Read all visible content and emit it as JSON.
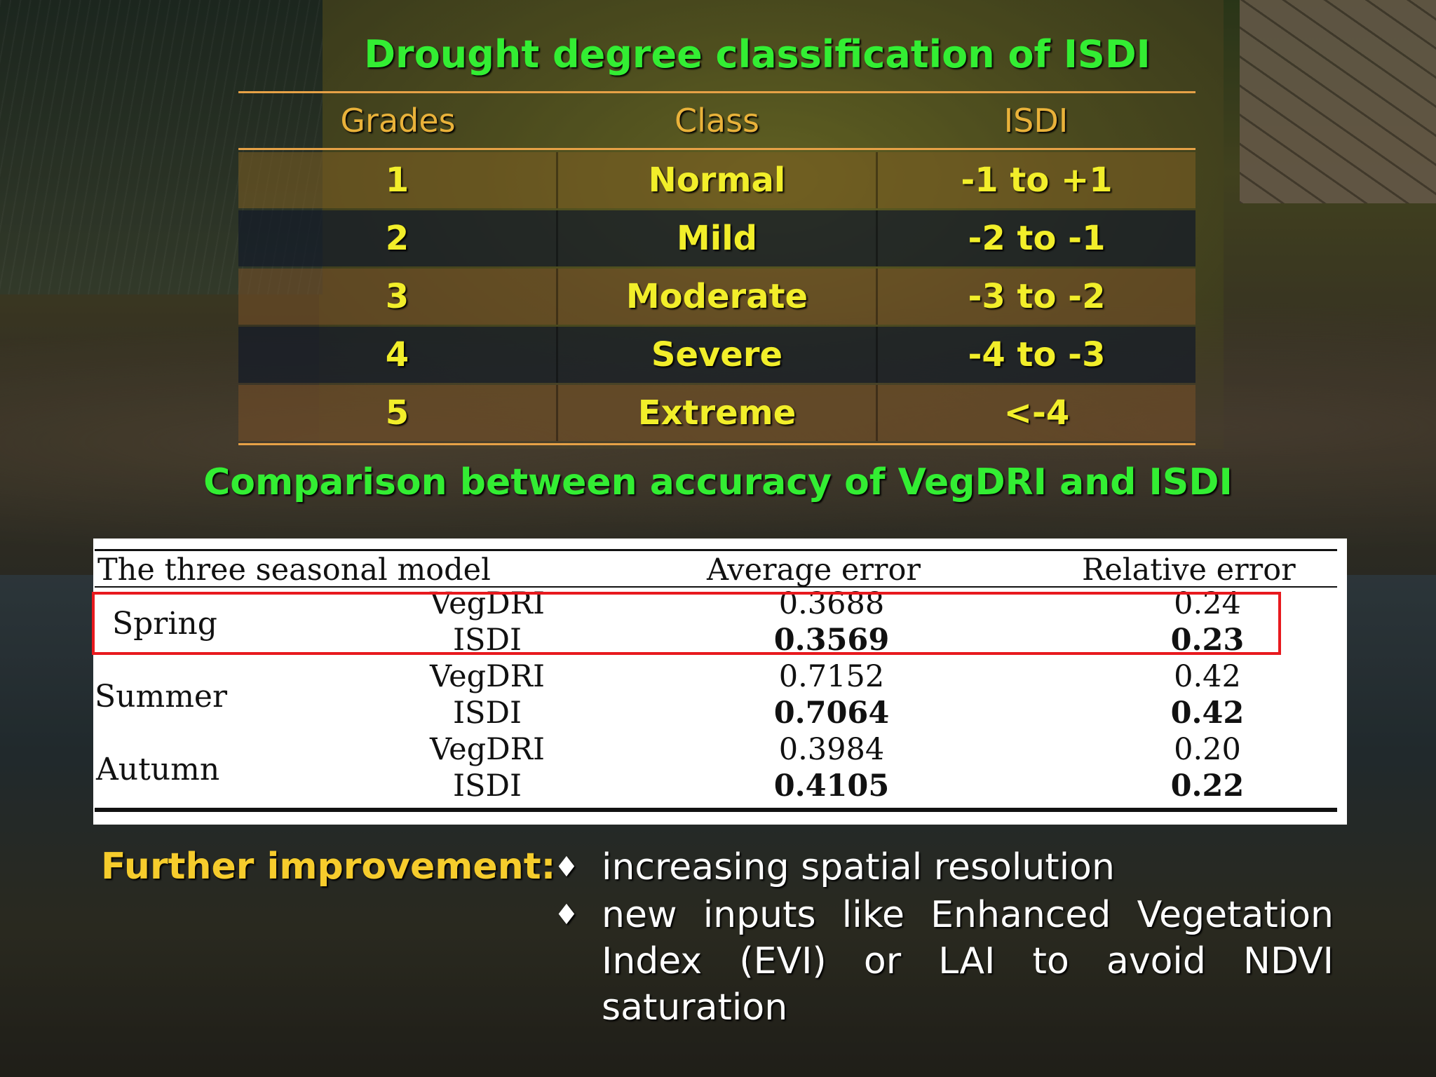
{
  "title_top": "Drought degree classification of ISDI",
  "grades_table": {
    "headers": [
      "Grades",
      "Class",
      "ISDI"
    ],
    "rows": [
      [
        "1",
        "Normal",
        "-1 to +1"
      ],
      [
        "2",
        "Mild",
        "-2 to -1"
      ],
      [
        "3",
        "Moderate",
        "-3 to -2"
      ],
      [
        "4",
        "Severe",
        "-4 to -3"
      ],
      [
        "5",
        "Extreme",
        "<-4"
      ]
    ]
  },
  "title_comparison": "Comparison between accuracy of VegDRI and ISDI",
  "comparison_table": {
    "headers": [
      "The three seasonal model",
      "Average error",
      "Relative error"
    ],
    "seasons": [
      {
        "season": "Spring",
        "rows": [
          {
            "model": "VegDRI",
            "avg": "0.3688",
            "rel": "0.24"
          },
          {
            "model": "ISDI",
            "avg": "0.3569",
            "rel": "0.23"
          }
        ]
      },
      {
        "season": "Summer",
        "rows": [
          {
            "model": "VegDRI",
            "avg": "0.7152",
            "rel": "0.42"
          },
          {
            "model": "ISDI",
            "avg": "0.7064",
            "rel": "0.42"
          }
        ]
      },
      {
        "season": "Autumn",
        "rows": [
          {
            "model": "VegDRI",
            "avg": "0.3984",
            "rel": "0.20"
          },
          {
            "model": "ISDI",
            "avg": "0.4105",
            "rel": "0.22"
          }
        ]
      }
    ],
    "highlight_color": "#e8191e"
  },
  "further": {
    "label": "Further improvement:",
    "bullet_glyph": "♦",
    "items": [
      "increasing spatial resolution",
      "new inputs like Enhanced Vegetation Index (EVI) or LAI to avoid NDVI saturation"
    ]
  },
  "colors": {
    "title_green": "#33ee33",
    "grade_text": "#f2ee2a",
    "header_orange": "#e9b23a",
    "rule_orange": "#e6a146",
    "further_label": "#f6cc2c"
  }
}
